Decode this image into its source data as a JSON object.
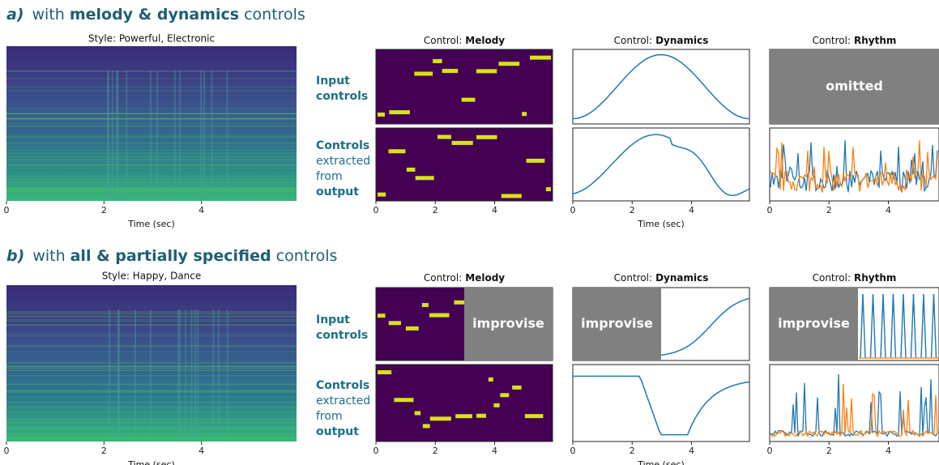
{
  "time_axis": {
    "xlim": [
      0,
      5.95
    ],
    "xticks": [
      0,
      2,
      4
    ],
    "xlabel": "Time (sec)"
  },
  "columns": [
    {
      "prefix": "Control:",
      "name": "Melody"
    },
    {
      "prefix": "Control:",
      "name": "Dynamics"
    },
    {
      "prefix": "Control:",
      "name": "Rhythm"
    }
  ],
  "row_labels": {
    "input": [
      "Input",
      "controls"
    ],
    "output": [
      "Controls",
      "extracted",
      "from",
      "output"
    ]
  },
  "sections": [
    {
      "label": "a)",
      "title": {
        "before": "with",
        "bold": "melody & dynamics",
        "after": "controls"
      },
      "style": "Style: Powerful, Electronic",
      "input_overlays": {
        "Rhythm": "omitted"
      }
    },
    {
      "label": "b)",
      "title": {
        "before": "with",
        "bold": "all & partially specified",
        "after": "controls"
      },
      "style": "Style: Happy, Dance",
      "input_overlays": {
        "Melody": "improvise",
        "Dynamics": "improvise",
        "Rhythm": "improvise"
      }
    }
  ]
}
